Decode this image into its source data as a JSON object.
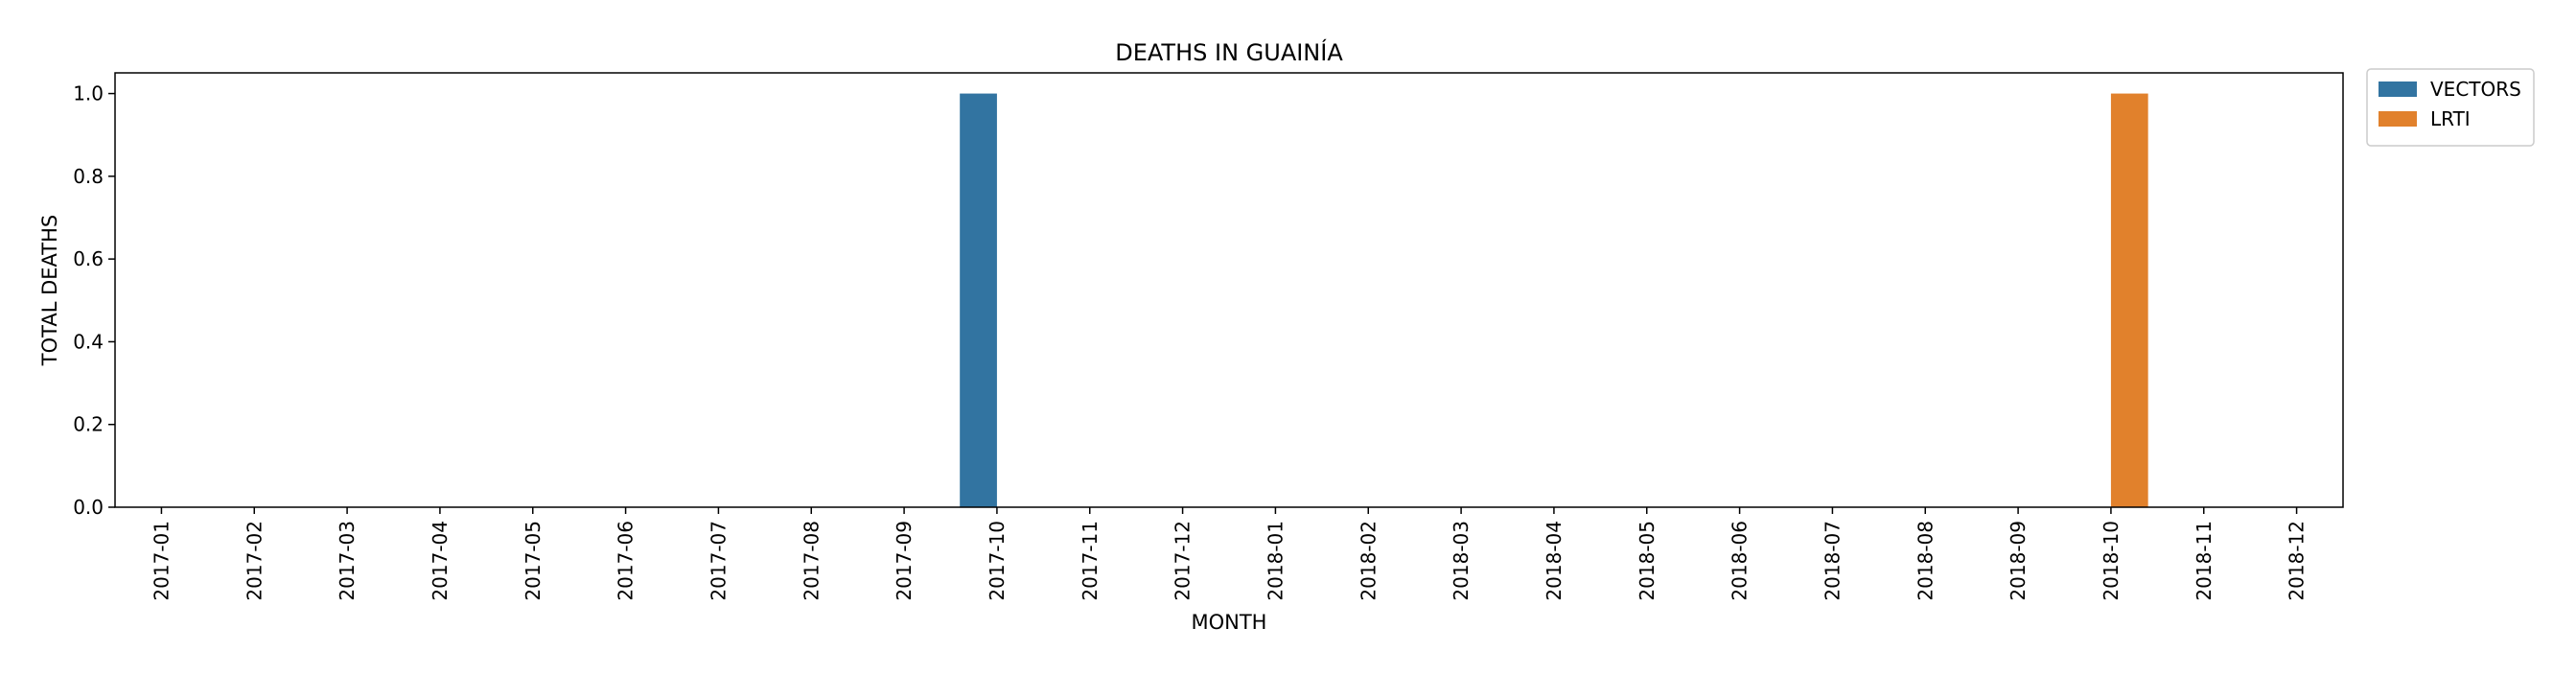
{
  "chart_data": {
    "type": "bar",
    "title": "DEATHS IN GUAINÍA",
    "xlabel": "MONTH",
    "ylabel": "TOTAL DEATHS",
    "ylim": [
      0,
      1.05
    ],
    "yticks": [
      "0.0",
      "0.2",
      "0.4",
      "0.6",
      "0.8",
      "1.0"
    ],
    "grid": false,
    "legend_position": "outside-top-right",
    "categories": [
      "2017-01",
      "2017-02",
      "2017-03",
      "2017-04",
      "2017-05",
      "2017-06",
      "2017-07",
      "2017-08",
      "2017-09",
      "2017-10",
      "2017-11",
      "2017-12",
      "2018-01",
      "2018-02",
      "2018-03",
      "2018-04",
      "2018-05",
      "2018-06",
      "2018-07",
      "2018-08",
      "2018-09",
      "2018-10",
      "2018-11",
      "2018-12"
    ],
    "series": [
      {
        "name": "VECTORS",
        "color": "#3274a1",
        "values": [
          0,
          0,
          0,
          0,
          0,
          0,
          0,
          0,
          0,
          1,
          0,
          0,
          0,
          0,
          0,
          0,
          0,
          0,
          0,
          0,
          0,
          0,
          0,
          0
        ]
      },
      {
        "name": "LRTI",
        "color": "#e1812c",
        "values": [
          0,
          0,
          0,
          0,
          0,
          0,
          0,
          0,
          0,
          0,
          0,
          0,
          0,
          0,
          0,
          0,
          0,
          0,
          0,
          0,
          0,
          1,
          0,
          0
        ]
      }
    ]
  }
}
